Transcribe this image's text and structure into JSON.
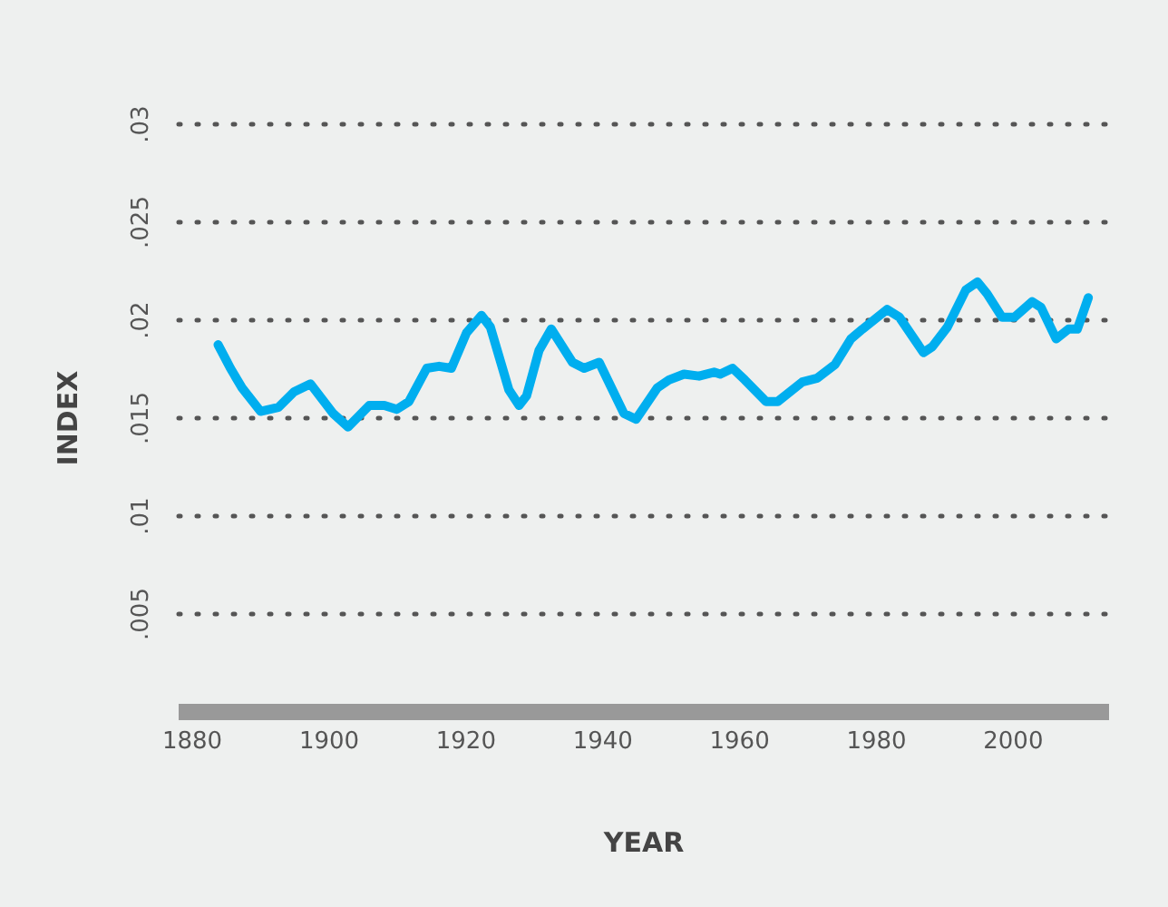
{
  "chart_data": {
    "type": "line",
    "xlabel": "YEAR",
    "ylabel": "INDEX",
    "x": [
      1883.9,
      1885.7,
      1887.4,
      1890.1,
      1892.7,
      1895,
      1897.4,
      1900.7,
      1902.9,
      1906,
      1908.2,
      1910,
      1911.8,
      1914.4,
      1916.2,
      1918,
      1920.2,
      1922.4,
      1923.7,
      1926.4,
      1927.9,
      1929,
      1930.8,
      1932.6,
      1935.7,
      1937.4,
      1939.6,
      1943.2,
      1945,
      1948.1,
      1949.8,
      1952,
      1954.2,
      1956.4,
      1957.3,
      1959.1,
      1960.9,
      1964,
      1965.7,
      1969.3,
      1971.5,
      1974.1,
      1976.4,
      1978.1,
      1981.7,
      1983.5,
      1987,
      1988.3,
      1990.5,
      1993.2,
      1994.9,
      1996.3,
      1998.5,
      2000.3,
      2002.9,
      2004.2,
      2006.4,
      2008.2,
      2009.5,
      2011.1
    ],
    "series": [
      {
        "color": "#00aeef",
        "values": [
          0.0187,
          0.0175,
          0.0165,
          0.0153,
          0.0155,
          0.0163,
          0.0167,
          0.0152,
          0.0145,
          0.0156,
          0.0156,
          0.0154,
          0.0158,
          0.0175,
          0.0176,
          0.0175,
          0.0193,
          0.0202,
          0.0196,
          0.0164,
          0.0156,
          0.0161,
          0.0184,
          0.0195,
          0.0178,
          0.0175,
          0.0178,
          0.0152,
          0.0149,
          0.0165,
          0.0169,
          0.0172,
          0.0171,
          0.0173,
          0.0172,
          0.0175,
          0.0169,
          0.0158,
          0.0158,
          0.0168,
          0.017,
          0.0177,
          0.019,
          0.0195,
          0.0205,
          0.0201,
          0.0183,
          0.0186,
          0.0196,
          0.0215,
          0.0219,
          0.0213,
          0.0201,
          0.0201,
          0.0209,
          0.0206,
          0.019,
          0.0195,
          0.0195,
          0.0211
        ]
      }
    ],
    "xlim": [
      1878,
      2014
    ],
    "xticks": [
      1880,
      1900,
      1920,
      1940,
      1960,
      1980,
      2000
    ],
    "ylim": [
      0,
      0.03
    ],
    "yticks": [
      {
        "value": 0.005,
        "label": ".005"
      },
      {
        "value": 0.01,
        "label": ".01"
      },
      {
        "value": 0.015,
        "label": ".015"
      },
      {
        "value": 0.02,
        "label": ".02"
      },
      {
        "value": 0.025,
        "label": ".025"
      },
      {
        "value": 0.03,
        "label": ".03"
      }
    ],
    "grid": "y",
    "marker": "none",
    "line_style": "solid"
  }
}
